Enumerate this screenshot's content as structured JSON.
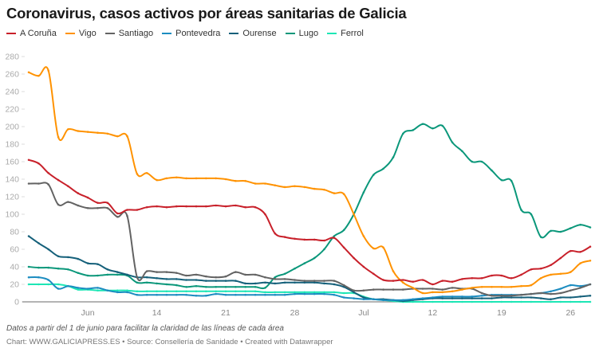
{
  "chart_data": {
    "type": "line",
    "title": "Coronavirus, casos activos por áreas sanitarias de Galicia",
    "x_start": "2020-06-01",
    "x_end": "2020-07-28",
    "x_interval": "daily",
    "xtick_labels": [
      "Jun",
      "14",
      "21",
      "28",
      "Jul",
      "12",
      "19",
      "26"
    ],
    "xtick_dates": [
      "2020-06-07",
      "2020-06-14",
      "2020-06-21",
      "2020-06-28",
      "2020-07-05",
      "2020-07-12",
      "2020-07-19",
      "2020-07-26"
    ],
    "ylim": [
      0,
      280
    ],
    "yticks": [
      0,
      20,
      40,
      60,
      80,
      100,
      120,
      140,
      160,
      180,
      200,
      220,
      240,
      260,
      280
    ],
    "grid": false,
    "legend_position": "top-left",
    "series": [
      {
        "name": "A Coruña",
        "color": "#c8202a",
        "values": [
          162,
          158,
          147,
          139,
          132,
          124,
          119,
          113,
          113,
          101,
          105,
          105,
          108,
          109,
          108,
          109,
          109,
          109,
          109,
          110,
          109,
          110,
          108,
          108,
          100,
          78,
          74,
          72,
          71,
          71,
          70,
          73,
          62,
          50,
          40,
          32,
          25,
          24,
          25,
          23,
          25,
          20,
          24,
          23,
          26,
          27,
          27,
          30,
          30,
          27,
          31,
          37,
          38,
          42,
          50,
          58,
          57,
          63
        ]
      },
      {
        "name": "Vigo",
        "color": "#ff9200",
        "values": [
          262,
          258,
          264,
          188,
          197,
          195,
          194,
          193,
          192,
          189,
          189,
          146,
          147,
          139,
          141,
          142,
          141,
          141,
          141,
          141,
          140,
          138,
          138,
          135,
          135,
          133,
          131,
          132,
          131,
          129,
          128,
          124,
          123,
          100,
          75,
          61,
          62,
          35,
          22,
          16,
          10,
          11,
          11,
          12,
          14,
          16,
          17,
          17,
          17,
          17,
          18,
          19,
          27,
          31,
          32,
          34,
          44,
          47
        ]
      },
      {
        "name": "Santiago",
        "color": "#636363",
        "values": [
          135,
          135,
          134,
          111,
          114,
          110,
          107,
          107,
          107,
          97,
          98,
          28,
          35,
          34,
          34,
          33,
          30,
          31,
          29,
          28,
          29,
          34,
          31,
          31,
          28,
          26,
          26,
          25,
          24,
          24,
          24,
          24,
          19,
          13,
          13,
          14,
          14,
          14,
          14,
          15,
          15,
          15,
          14,
          16,
          15,
          15,
          10,
          7,
          7,
          7,
          8,
          9,
          10,
          9,
          10,
          13,
          16,
          20
        ]
      },
      {
        "name": "Pontevedra",
        "color": "#1b8cc0",
        "values": [
          28,
          28,
          25,
          15,
          18,
          16,
          15,
          16,
          13,
          11,
          11,
          8,
          8,
          8,
          8,
          8,
          8,
          7,
          7,
          9,
          8,
          8,
          8,
          8,
          8,
          8,
          8,
          9,
          9,
          9,
          9,
          8,
          5,
          4,
          3,
          3,
          2,
          2,
          2,
          3,
          4,
          5,
          6,
          6,
          6,
          6,
          7,
          8,
          8,
          8,
          8,
          9,
          10,
          12,
          15,
          19,
          18,
          20
        ]
      },
      {
        "name": "Ourense",
        "color": "#15607a",
        "values": [
          75,
          67,
          60,
          52,
          51,
          49,
          44,
          43,
          37,
          34,
          31,
          28,
          28,
          27,
          26,
          26,
          25,
          25,
          24,
          24,
          24,
          24,
          21,
          21,
          22,
          21,
          22,
          22,
          22,
          22,
          21,
          20,
          17,
          11,
          5,
          3,
          3,
          2,
          1,
          2,
          3,
          4,
          4,
          4,
          4,
          4,
          4,
          4,
          5,
          5,
          5,
          5,
          4,
          3,
          5,
          5,
          6,
          7
        ]
      },
      {
        "name": "Lugo",
        "color": "#0a977a",
        "values": [
          40,
          39,
          39,
          38,
          37,
          33,
          30,
          30,
          31,
          31,
          30,
          22,
          22,
          21,
          20,
          19,
          17,
          18,
          17,
          17,
          17,
          17,
          17,
          17,
          16,
          28,
          32,
          38,
          44,
          50,
          60,
          75,
          82,
          100,
          125,
          145,
          152,
          165,
          192,
          196,
          203,
          198,
          201,
          182,
          172,
          160,
          160,
          150,
          139,
          138,
          105,
          100,
          74,
          81,
          80,
          84,
          88,
          85
        ]
      },
      {
        "name": "Ferrol",
        "color": "#1de6b5",
        "values": [
          20,
          20,
          20,
          20,
          18,
          14,
          14,
          13,
          13,
          13,
          13,
          12,
          12,
          12,
          12,
          12,
          12,
          12,
          12,
          12,
          12,
          12,
          12,
          12,
          11,
          11,
          11,
          11,
          11,
          11,
          11,
          11,
          10,
          10,
          6,
          3,
          2,
          1,
          0,
          0,
          0,
          0,
          0,
          0,
          0,
          0,
          0,
          0,
          0,
          0,
          0,
          0,
          0,
          0,
          0,
          0,
          0,
          0
        ]
      }
    ],
    "notes": "Datos a partir del 1 de junio para facilitar la claridad de las líneas de cada área",
    "source": "Chart: WWW.GALICIAPRESS.ES • Source: Consellería de Sanidade • Created with Datawrapper"
  }
}
